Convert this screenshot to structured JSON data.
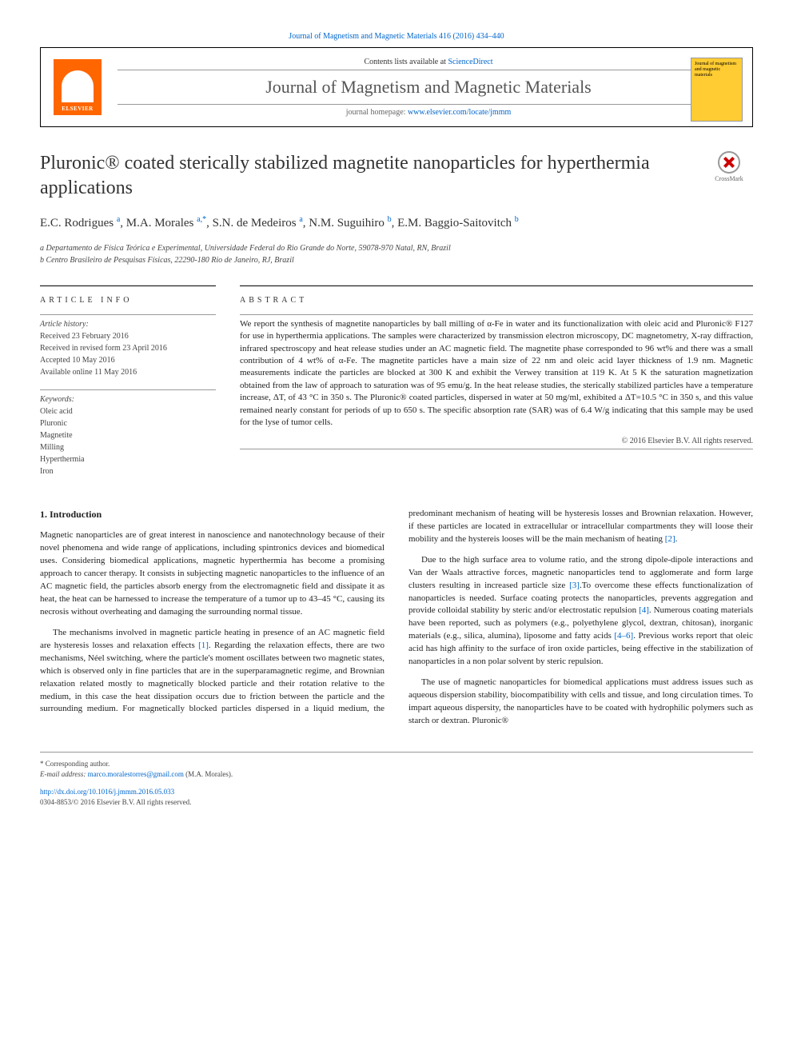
{
  "top_citation": "Journal of Magnetism and Magnetic Materials 416 (2016) 434–440",
  "header": {
    "contents_prefix": "Contents lists available at ",
    "contents_link": "ScienceDirect",
    "journal_title": "Journal of Magnetism and Magnetic Materials",
    "homepage_prefix": "journal homepage: ",
    "homepage_link": "www.elsevier.com/locate/jmmm",
    "elsevier_label": "ELSEVIER",
    "cover_text": "Journal of magnetism and magnetic materials"
  },
  "crossmark_label": "CrossMark",
  "article": {
    "title": "Pluronic® coated sterically stabilized magnetite nanoparticles for hyperthermia applications",
    "authors_html": "E.C. Rodrigues <sup>a</sup>, M.A. Morales <sup>a,*</sup>, S.N. de Medeiros <sup>a</sup>, N.M. Suguihiro <sup>b</sup>, E.M. Baggio-Saitovitch <sup>b</sup>",
    "affiliations": [
      "a Departamento de Física Teórica e Experimental, Universidade Federal do Rio Grande do Norte, 59078-970 Natal, RN, Brazil",
      "b Centro Brasileiro de Pesquisas Físicas, 22290-180 Rio de Janeiro, RJ, Brazil"
    ]
  },
  "info": {
    "label": "ARTICLE INFO",
    "history_label": "Article history:",
    "history": [
      "Received 23 February 2016",
      "Received in revised form 23 April 2016",
      "Accepted 10 May 2016",
      "Available online 11 May 2016"
    ],
    "keywords_label": "Keywords:",
    "keywords": [
      "Oleic acid",
      "Pluronic",
      "Magnetite",
      "Milling",
      "Hyperthermia",
      "Iron"
    ]
  },
  "abstract": {
    "label": "ABSTRACT",
    "text": "We report the synthesis of magnetite nanoparticles by ball milling of α-Fe in water and its functionalization with oleic acid and Pluronic® F127 for use in hyperthermia applications. The samples were characterized by transmission electron microscopy, DC magnetometry, X-ray diffraction, infrared spectroscopy and heat release studies under an AC magnetic field. The magnetite phase corresponded to 96 wt% and there was a small contribution of 4 wt% of α-Fe. The magnetite particles have a main size of 22 nm and oleic acid layer thickness of 1.9 nm. Magnetic measurements indicate the particles are blocked at 300 K and exhibit the Verwey transition at 119 K. At 5 K the saturation magnetization obtained from the law of approach to saturation was of 95 emu/g. In the heat release studies, the sterically stabilized particles have a temperature increase, ΔT, of 43 °C in 350 s. The Pluronic® coated particles, dispersed in water at 50 mg/ml, exhibited a ΔT=10.5 °C in 350 s, and this value remained nearly constant for periods of up to 650 s. The specific absorption rate (SAR) was of 6.4 W/g indicating that this sample may be used for the lyse of tumor cells.",
    "copyright": "© 2016 Elsevier B.V. All rights reserved."
  },
  "body": {
    "heading": "1. Introduction",
    "paragraphs": [
      "Magnetic nanoparticles are of great interest in nanoscience and nanotechnology because of their novel phenomena and wide range of applications, including spintronics devices and biomedical uses. Considering biomedical applications, magnetic hyperthermia has become a promising approach to cancer therapy. It consists in subjecting magnetic nanoparticles to the influence of an AC magnetic field, the particles absorb energy from the electromagnetic field and dissipate it as heat, the heat can be harnessed to increase the temperature of a tumor up to 43–45 °C, causing its necrosis without overheating and damaging the surrounding normal tissue.",
      "The mechanisms involved in magnetic particle heating in presence of an AC magnetic field are hysteresis losses and relaxation effects [1]. Regarding the relaxation effects, there are two mechanisms, Néel switching, where the particle's moment oscillates between two magnetic states, which is observed only in fine particles that are in the superparamagnetic regime, and Brownian relaxation related mostly to magnetically blocked particle and their rotation relative to the medium, in this case the heat dissipation occurs due to friction between the particle and the surrounding medium. For magnetically blocked particles dispersed in a liquid medium, the predominant mechanism of heating will be hysteresis losses and Brownian relaxation. However, if these particles are located in extracellular or intracellular compartments they will loose their mobility and the hystereis looses will be the main mechanism of heating [2].",
      "Due to the high surface area to volume ratio, and the strong dipole-dipole interactions and Van der Waals attractive forces, magnetic nanoparticles tend to agglomerate and form large clusters resulting in increased particle size [3].To overcome these effects functionalization of nanoparticles is needed. Surface coating protects the nanoparticles, prevents aggregation and provide colloidal stability by steric and/or electrostatic repulsion [4]. Numerous coating materials have been reported, such as polymers (e.g., polyethylene glycol, dextran, chitosan), inorganic materials (e.g., silica, alumina), liposome and fatty acids [4–6]. Previous works report that oleic acid has high affinity to the surface of iron oxide particles, being effective in the stabilization of nanoparticles in a non polar solvent by steric repulsion.",
      "The use of magnetic nanoparticles for biomedical applications must address issues such as aqueous dispersion stability, biocompatibility with cells and tissue, and long circulation times. To impart aqueous dispersity, the nanoparticles have to be coated with hydrophilic polymers such as starch or dextran. Pluronic®"
    ]
  },
  "footer": {
    "corr_label": "* Corresponding author.",
    "email_label": "E-mail address: ",
    "email": "marco.moralestorres@gmail.com",
    "email_name": " (M.A. Morales).",
    "doi": "http://dx.doi.org/10.1016/j.jmmm.2016.05.033",
    "issn_line": "0304-8853/© 2016 Elsevier B.V. All rights reserved."
  },
  "colors": {
    "link": "#0066cc",
    "elsevier_orange": "#ff6600",
    "cover_yellow": "#ffcc33",
    "text": "#222222"
  }
}
